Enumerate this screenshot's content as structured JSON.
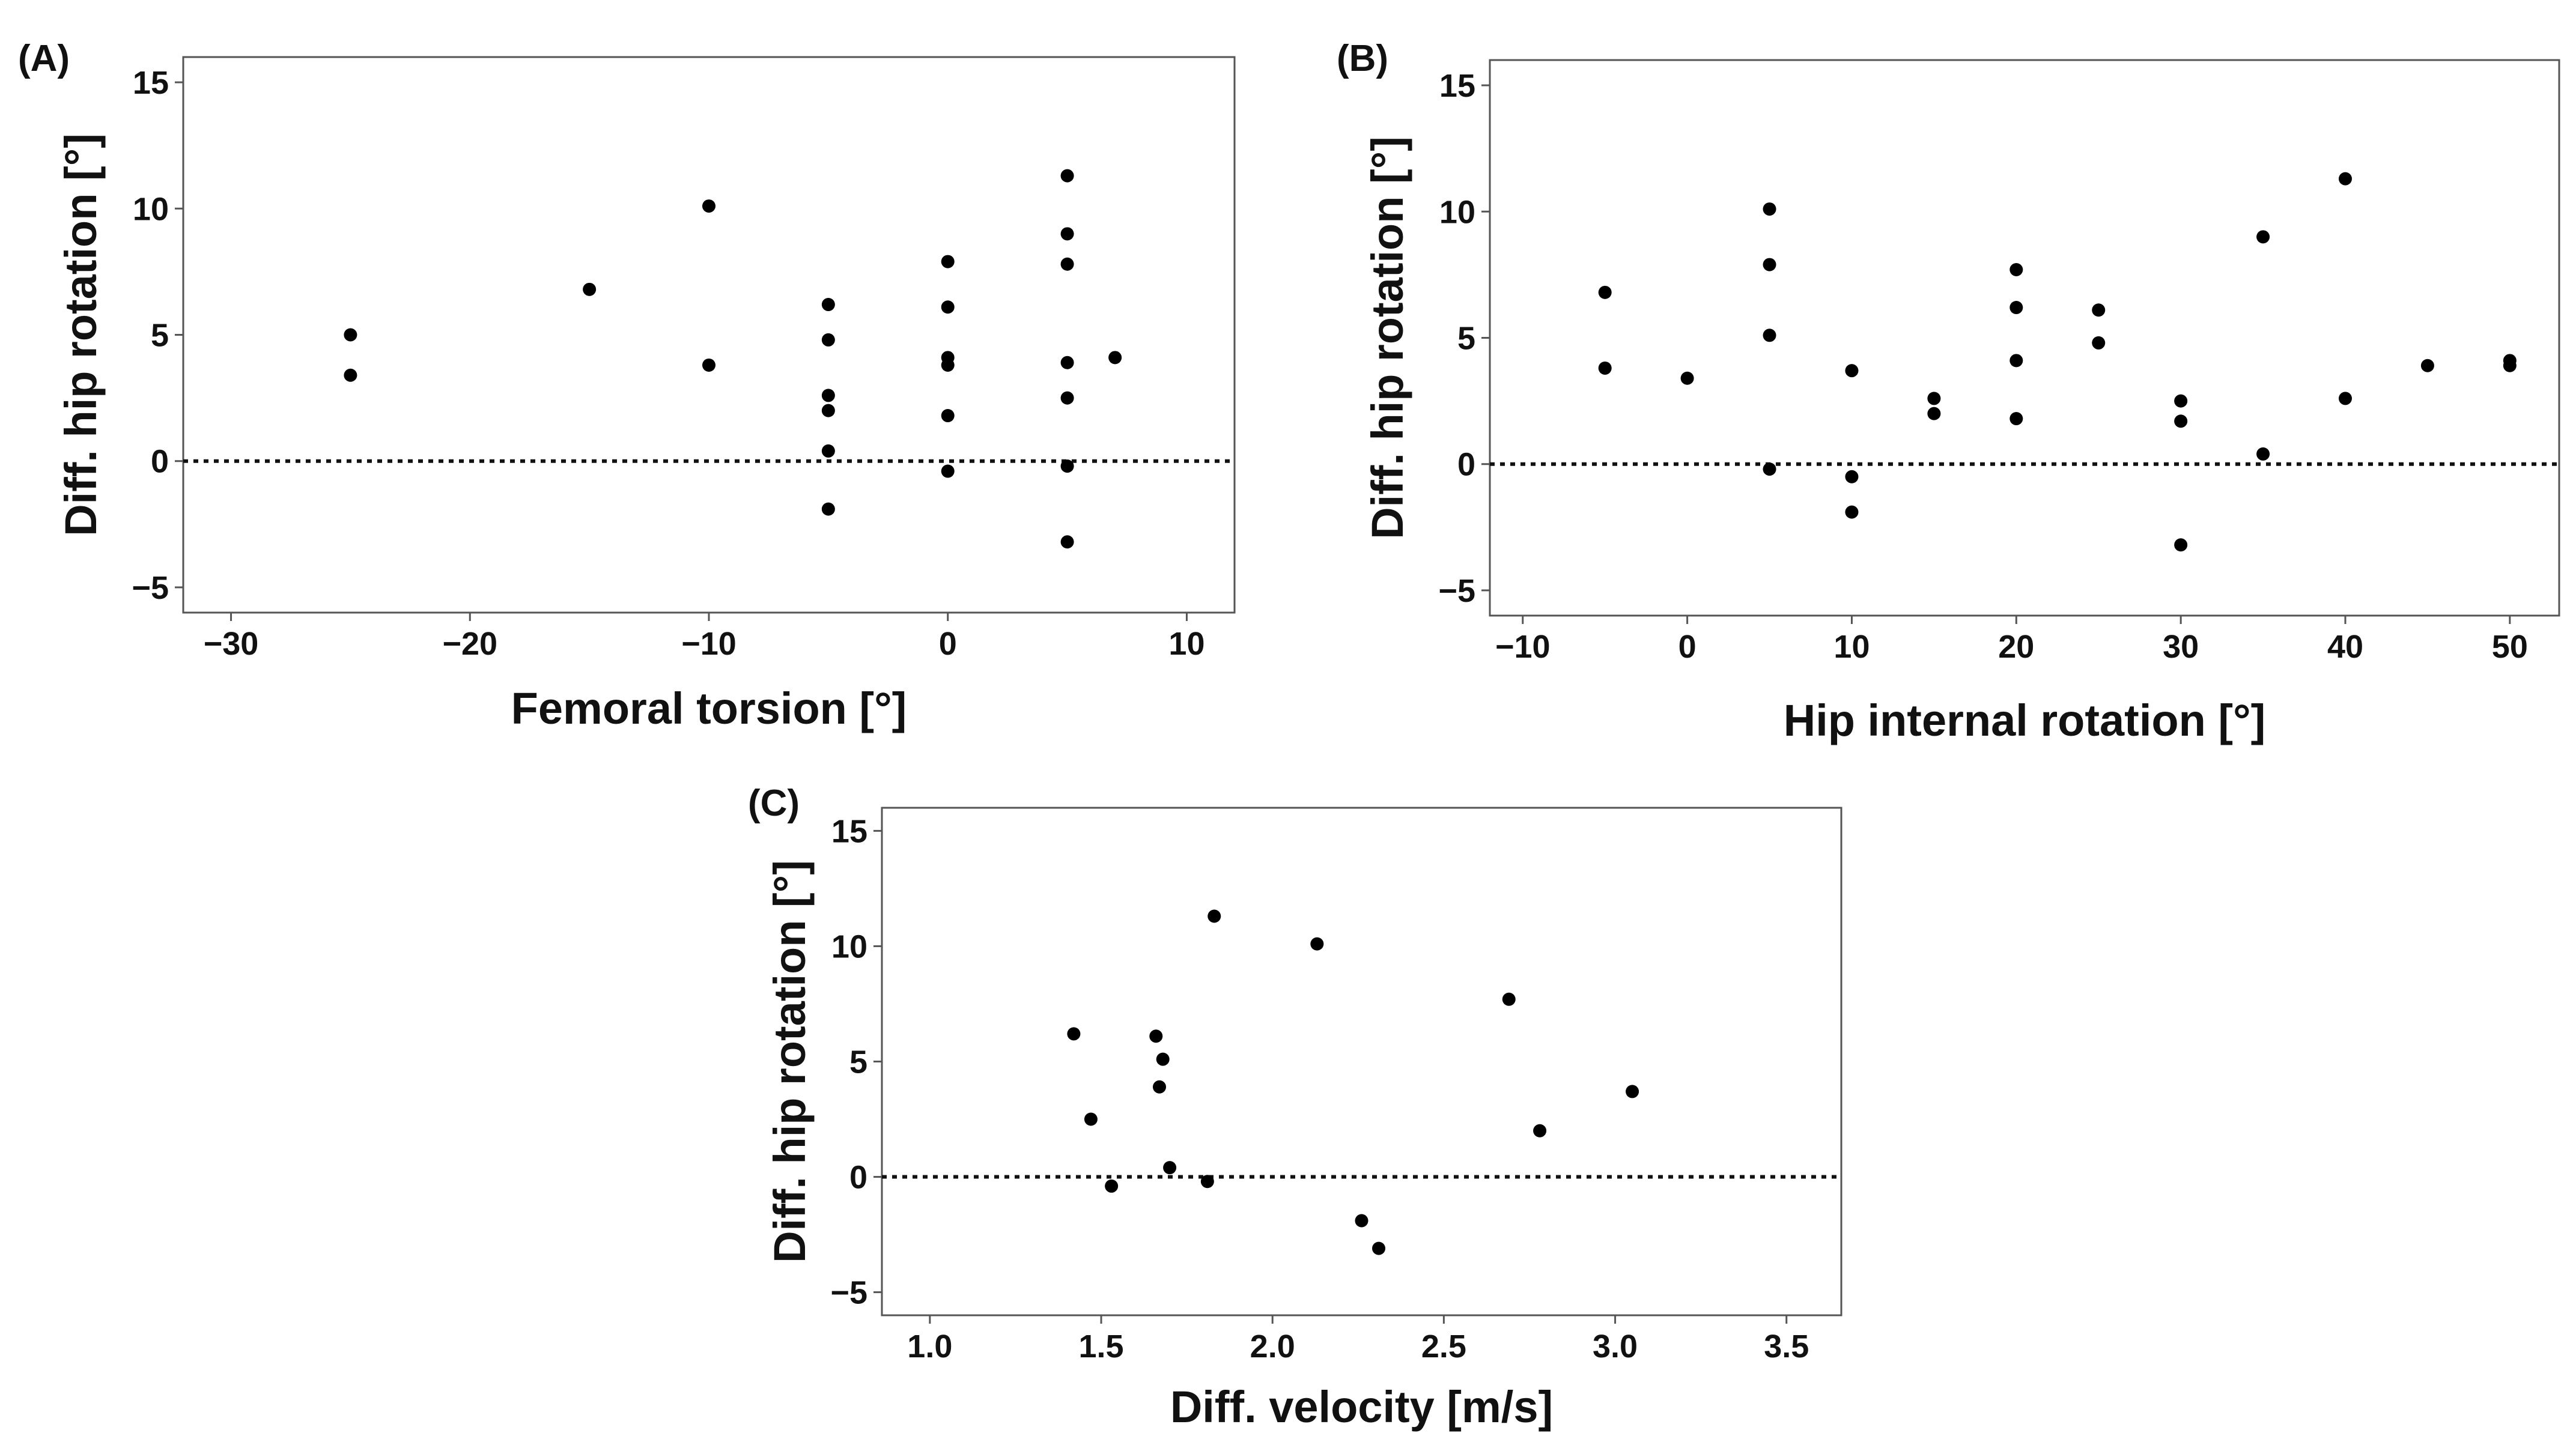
{
  "chart_data": [
    {
      "type": "scatter",
      "panel": "(A)",
      "xlabel": "Femoral torsion [°]",
      "ylabel": "Diff. hip rotation [°]",
      "xlim": [
        -32,
        12
      ],
      "ylim": [
        -6,
        16
      ],
      "xticks": [
        -30,
        -20,
        -10,
        0,
        10
      ],
      "yticks": [
        -5,
        0,
        5,
        10,
        15
      ],
      "xtick_labels": [
        "−30",
        "−20",
        "−10",
        "0",
        "10"
      ],
      "ytick_labels": [
        "−5",
        "0",
        "5",
        "10",
        "15"
      ],
      "reference_line": {
        "y": 0,
        "style": "dotted"
      },
      "grid": false,
      "points": [
        {
          "x": -25,
          "y": 5.0
        },
        {
          "x": -25,
          "y": 3.4
        },
        {
          "x": -15,
          "y": 6.8
        },
        {
          "x": -10,
          "y": 10.1
        },
        {
          "x": -10,
          "y": 3.8
        },
        {
          "x": -5,
          "y": 6.2
        },
        {
          "x": -5,
          "y": 4.8
        },
        {
          "x": -5,
          "y": 2.6
        },
        {
          "x": -5,
          "y": 2.0
        },
        {
          "x": -5,
          "y": 0.4
        },
        {
          "x": -5,
          "y": -1.9
        },
        {
          "x": 0,
          "y": 7.9
        },
        {
          "x": 0,
          "y": 6.1
        },
        {
          "x": 0,
          "y": 4.1
        },
        {
          "x": 0,
          "y": 3.8
        },
        {
          "x": 0,
          "y": 1.8
        },
        {
          "x": 0,
          "y": -0.4
        },
        {
          "x": 5,
          "y": 11.3
        },
        {
          "x": 5,
          "y": 9.0
        },
        {
          "x": 5,
          "y": 7.8
        },
        {
          "x": 5,
          "y": 3.9
        },
        {
          "x": 5,
          "y": 2.5
        },
        {
          "x": 5,
          "y": -0.2
        },
        {
          "x": 5,
          "y": -3.2
        },
        {
          "x": 7,
          "y": 4.1
        }
      ]
    },
    {
      "type": "scatter",
      "panel": "(B)",
      "xlabel": "Hip internal rotation [°]",
      "ylabel": "Diff. hip rotation [°]",
      "xlim": [
        -12,
        53
      ],
      "ylim": [
        -6,
        16
      ],
      "xticks": [
        -10,
        0,
        10,
        20,
        30,
        40,
        50
      ],
      "yticks": [
        -5,
        0,
        5,
        10,
        15
      ],
      "xtick_labels": [
        "−10",
        "0",
        "10",
        "20",
        "30",
        "40",
        "50"
      ],
      "ytick_labels": [
        "−5",
        "0",
        "5",
        "10",
        "15"
      ],
      "reference_line": {
        "y": 0,
        "style": "dotted"
      },
      "grid": false,
      "points": [
        {
          "x": -5,
          "y": 6.8
        },
        {
          "x": -5,
          "y": 3.8
        },
        {
          "x": 0,
          "y": 3.4
        },
        {
          "x": 5,
          "y": 10.1
        },
        {
          "x": 5,
          "y": 7.9
        },
        {
          "x": 5,
          "y": 5.1
        },
        {
          "x": 5,
          "y": -0.2
        },
        {
          "x": 10,
          "y": 3.7
        },
        {
          "x": 10,
          "y": -0.5
        },
        {
          "x": 10,
          "y": -1.9
        },
        {
          "x": 15,
          "y": 2.6
        },
        {
          "x": 15,
          "y": 2.0
        },
        {
          "x": 20,
          "y": 7.7
        },
        {
          "x": 20,
          "y": 6.2
        },
        {
          "x": 20,
          "y": 4.1
        },
        {
          "x": 20,
          "y": 1.8
        },
        {
          "x": 25,
          "y": 6.1
        },
        {
          "x": 25,
          "y": 4.8
        },
        {
          "x": 30,
          "y": 2.5
        },
        {
          "x": 30,
          "y": 1.7
        },
        {
          "x": 30,
          "y": -3.2
        },
        {
          "x": 35,
          "y": 9.0
        },
        {
          "x": 35,
          "y": 0.4
        },
        {
          "x": 40,
          "y": 11.3
        },
        {
          "x": 40,
          "y": 2.6
        },
        {
          "x": 45,
          "y": 3.9
        },
        {
          "x": 50,
          "y": 4.1
        },
        {
          "x": 50,
          "y": 3.9
        }
      ]
    },
    {
      "type": "scatter",
      "panel": "(C)",
      "xlabel": "Diff. velocity [m/s]",
      "ylabel": "Diff. hip rotation [°]",
      "xlim": [
        0.86,
        3.66
      ],
      "ylim": [
        -6,
        16
      ],
      "xticks": [
        1.0,
        1.5,
        2.0,
        2.5,
        3.0,
        3.5
      ],
      "yticks": [
        -5,
        0,
        5,
        10,
        15
      ],
      "xtick_labels": [
        "1.0",
        "1.5",
        "2.0",
        "2.5",
        "3.0",
        "3.5"
      ],
      "ytick_labels": [
        "−5",
        "0",
        "5",
        "10",
        "15"
      ],
      "reference_line": {
        "y": 0,
        "style": "dotted"
      },
      "grid": false,
      "points": [
        {
          "x": 1.42,
          "y": 6.2
        },
        {
          "x": 1.47,
          "y": 2.5
        },
        {
          "x": 1.53,
          "y": -0.4
        },
        {
          "x": 1.66,
          "y": 6.1
        },
        {
          "x": 1.67,
          "y": 3.9
        },
        {
          "x": 1.68,
          "y": 5.1
        },
        {
          "x": 1.7,
          "y": 0.4
        },
        {
          "x": 1.81,
          "y": -0.2
        },
        {
          "x": 1.83,
          "y": 11.3
        },
        {
          "x": 2.13,
          "y": 10.1
        },
        {
          "x": 2.26,
          "y": -1.9
        },
        {
          "x": 2.31,
          "y": -3.1
        },
        {
          "x": 2.69,
          "y": 7.7
        },
        {
          "x": 2.78,
          "y": 2.0
        },
        {
          "x": 3.05,
          "y": 3.7
        }
      ]
    }
  ]
}
